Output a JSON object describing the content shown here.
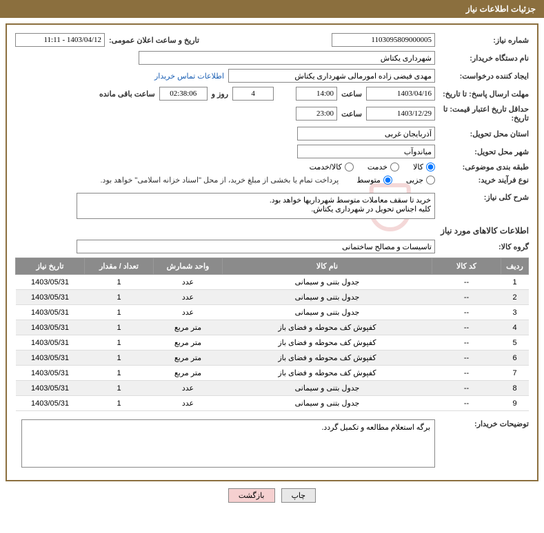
{
  "header": {
    "title": "جزئیات اطلاعات نیاز"
  },
  "fields": {
    "need_number_label": "شماره نیاز:",
    "need_number": "1103095809000005",
    "announce_label": "تاریخ و ساعت اعلان عمومی:",
    "announce_value": "1403/04/12 - 11:11",
    "buyer_org_label": "نام دستگاه خریدار:",
    "buyer_org": "شهرداری یکتاش",
    "requester_label": "ایجاد کننده درخواست:",
    "requester": "مهدی فیضی زاده امورمالی شهرداری یکتاش",
    "contact_link": "اطلاعات تماس خریدار",
    "deadline_label": "مهلت ارسال پاسخ: تا تاریخ:",
    "deadline_date": "1403/04/16",
    "time_label": "ساعت",
    "deadline_time": "14:00",
    "days_value": "4",
    "days_and": "روز و",
    "countdown": "02:38:06",
    "remaining": "ساعت باقی مانده",
    "validity_label": "حداقل تاریخ اعتبار قیمت: تا تاریخ:",
    "validity_date": "1403/12/29",
    "validity_time": "23:00",
    "province_label": "استان محل تحویل:",
    "province": "آذربایجان غربی",
    "city_label": "شهر محل تحویل:",
    "city": "میاندوآب",
    "category_label": "طبقه بندی موضوعی:",
    "radio_goods": "کالا",
    "radio_service": "خدمت",
    "radio_goods_service": "کالا/خدمت",
    "purchase_type_label": "نوع فرآیند خرید:",
    "radio_partial": "جزیی",
    "radio_medium": "متوسط",
    "purchase_note": "پرداخت تمام یا بخشی از مبلغ خرید، از محل \"اسناد خزانه اسلامی\" خواهد بود.",
    "general_desc_label": "شرح کلی نیاز:",
    "general_desc": "خرید تا سقف معاملات متوسط شهرداریها خواهد بود.\nکلیه اجناس تحویل در شهرداری یکتاش.",
    "items_section": "اطلاعات کالاهای مورد نیاز",
    "group_label": "گروه کالا:",
    "group_value": "تاسیسات و مصالح ساختمانی",
    "buyer_notes_label": "توضیحات خریدار:",
    "buyer_notes": "برگه استعلام مطالعه و تکمیل گردد."
  },
  "table": {
    "headers": {
      "row": "ردیف",
      "code": "کد کالا",
      "name": "نام کالا",
      "unit": "واحد شمارش",
      "qty": "تعداد / مقدار",
      "date": "تاریخ نیاز"
    },
    "rows": [
      {
        "n": "1",
        "code": "--",
        "name": "جدول بتنی و سیمانی",
        "unit": "عدد",
        "qty": "1",
        "date": "1403/05/31"
      },
      {
        "n": "2",
        "code": "--",
        "name": "جدول بتنی و سیمانی",
        "unit": "عدد",
        "qty": "1",
        "date": "1403/05/31"
      },
      {
        "n": "3",
        "code": "--",
        "name": "جدول بتنی و سیمانی",
        "unit": "عدد",
        "qty": "1",
        "date": "1403/05/31"
      },
      {
        "n": "4",
        "code": "--",
        "name": "کفپوش کف محوطه و فضای باز",
        "unit": "متر مربع",
        "qty": "1",
        "date": "1403/05/31"
      },
      {
        "n": "5",
        "code": "--",
        "name": "کفپوش کف محوطه و فضای باز",
        "unit": "متر مربع",
        "qty": "1",
        "date": "1403/05/31"
      },
      {
        "n": "6",
        "code": "--",
        "name": "کفپوش کف محوطه و فضای باز",
        "unit": "متر مربع",
        "qty": "1",
        "date": "1403/05/31"
      },
      {
        "n": "7",
        "code": "--",
        "name": "کفپوش کف محوطه و فضای باز",
        "unit": "متر مربع",
        "qty": "1",
        "date": "1403/05/31"
      },
      {
        "n": "8",
        "code": "--",
        "name": "جدول بتنی و سیمانی",
        "unit": "عدد",
        "qty": "1",
        "date": "1403/05/31"
      },
      {
        "n": "9",
        "code": "--",
        "name": "جدول بتنی و سیمانی",
        "unit": "عدد",
        "qty": "1",
        "date": "1403/05/31"
      }
    ]
  },
  "buttons": {
    "print": "چاپ",
    "back": "بازگشت"
  },
  "colors": {
    "header_bg": "#8b6f3e",
    "table_header_bg": "#8b8b8b",
    "link": "#1a5fb4",
    "btn_back_bg": "#f5d0d0"
  }
}
